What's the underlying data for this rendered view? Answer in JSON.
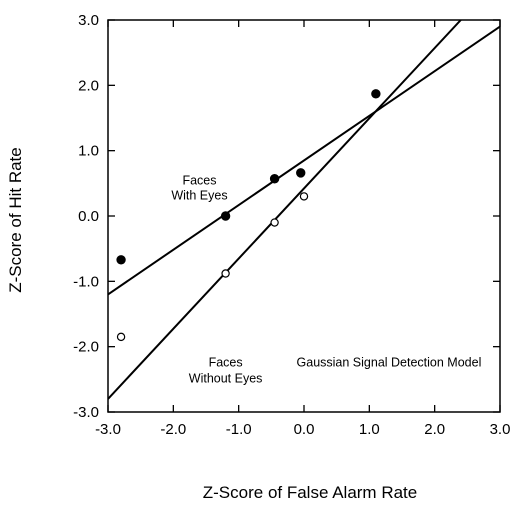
{
  "chart_data": {
    "type": "scatter",
    "title": "",
    "xlabel": "Z-Score of False Alarm Rate",
    "ylabel": "Z-Score of Hit Rate",
    "xlim": [
      -3.0,
      3.0
    ],
    "ylim": [
      -3.0,
      3.0
    ],
    "x_ticks": [
      -3.0,
      -2.0,
      -1.0,
      0.0,
      1.0,
      2.0,
      3.0
    ],
    "y_ticks": [
      -3.0,
      -2.0,
      -1.0,
      0.0,
      1.0,
      2.0,
      3.0
    ],
    "x_tick_labels": [
      "-3.0",
      "-2.0",
      "-1.0",
      "0.0",
      "1.0",
      "2.0",
      "3.0"
    ],
    "y_tick_labels": [
      "-3.0",
      "-2.0",
      "-1.0",
      "0.0",
      "1.0",
      "2.0",
      "3.0"
    ],
    "grid": false,
    "series": [
      {
        "name": "Faces With Eyes",
        "marker": "filled-circle",
        "color": "#000000",
        "points": [
          {
            "x": -2.8,
            "y": -0.67
          },
          {
            "x": -1.2,
            "y": 0.0
          },
          {
            "x": -0.45,
            "y": 0.57
          },
          {
            "x": -0.05,
            "y": 0.66
          },
          {
            "x": 1.1,
            "y": 1.87
          }
        ],
        "fit_line": [
          {
            "x": -3.0,
            "y": -1.2
          },
          {
            "x": 3.0,
            "y": 2.9
          }
        ]
      },
      {
        "name": "Faces Without Eyes",
        "marker": "open-circle",
        "color": "#000000",
        "points": [
          {
            "x": -2.8,
            "y": -1.85
          },
          {
            "x": -1.2,
            "y": -0.88
          },
          {
            "x": -0.45,
            "y": -0.1
          },
          {
            "x": 0.0,
            "y": 0.3
          }
        ],
        "fit_line": [
          {
            "x": -3.0,
            "y": -2.8
          },
          {
            "x": 2.4,
            "y": 3.0
          }
        ]
      }
    ],
    "annotations": [
      {
        "id": "with-eyes-1",
        "text": "Faces",
        "x": -1.6,
        "y": 0.48
      },
      {
        "id": "with-eyes-2",
        "text": "With Eyes",
        "x": -1.6,
        "y": 0.25
      },
      {
        "id": "without-eyes-1",
        "text": "Faces",
        "x": -1.2,
        "y": -2.3
      },
      {
        "id": "without-eyes-2",
        "text": "Without Eyes",
        "x": -1.2,
        "y": -2.55
      },
      {
        "id": "model",
        "text": "Gaussian Signal Detection Model",
        "x": 1.3,
        "y": -2.3
      }
    ]
  }
}
